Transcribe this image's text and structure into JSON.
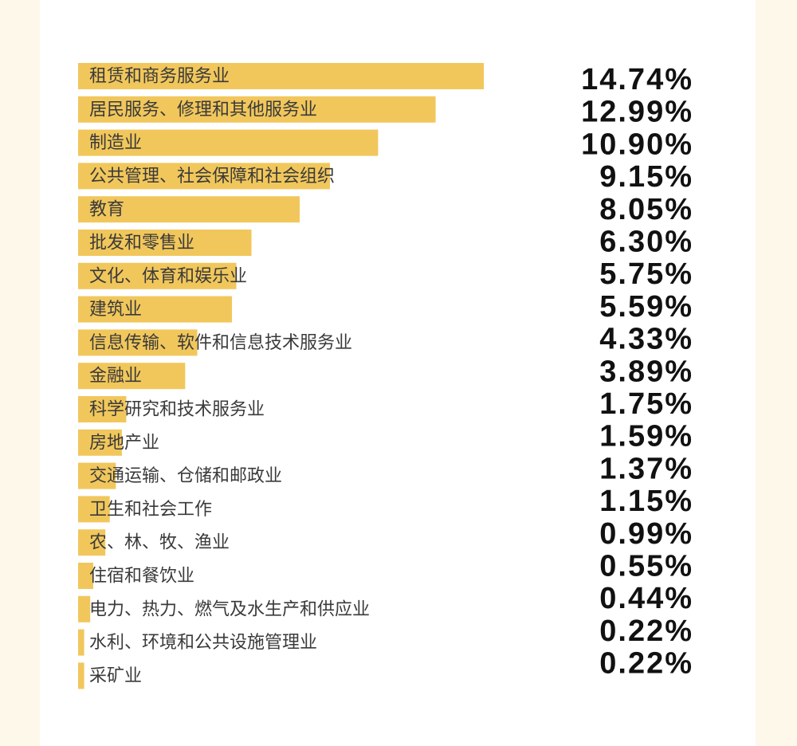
{
  "chart_data": {
    "type": "bar",
    "orientation": "horizontal",
    "color": "#f1c75c",
    "categories": [
      "租赁和商务服务业",
      "居民服务、修理和其他服务业",
      "制造业",
      "公共管理、社会保障和社会组织",
      "教育",
      "批发和零售业",
      "文化、体育和娱乐业",
      "建筑业",
      "信息传输、软件和信息技术服务业",
      "金融业",
      "科学研究和技术服务业",
      "房地产业",
      "交通运输、仓储和邮政业",
      "卫生和社会工作",
      "农、林、牧、渔业",
      "住宿和餐饮业",
      "电力、热力、燃气及水生产和供应业",
      "水利、环境和公共设施管理业",
      "采矿业"
    ],
    "values": [
      14.74,
      12.99,
      10.9,
      9.15,
      8.05,
      6.3,
      5.75,
      5.59,
      4.33,
      3.89,
      1.75,
      1.59,
      1.37,
      1.15,
      0.99,
      0.55,
      0.44,
      0.22,
      0.22
    ],
    "value_labels": [
      "14.74%",
      "12.99%",
      "10.90%",
      "9.15%",
      "8.05%",
      "6.30%",
      "5.75%",
      "5.59%",
      "4.33%",
      "3.89%",
      "1.75%",
      "1.59%",
      "1.37%",
      "1.15%",
      "0.99%",
      "0.55%",
      "0.44%",
      "0.22%",
      "0.22%"
    ]
  }
}
